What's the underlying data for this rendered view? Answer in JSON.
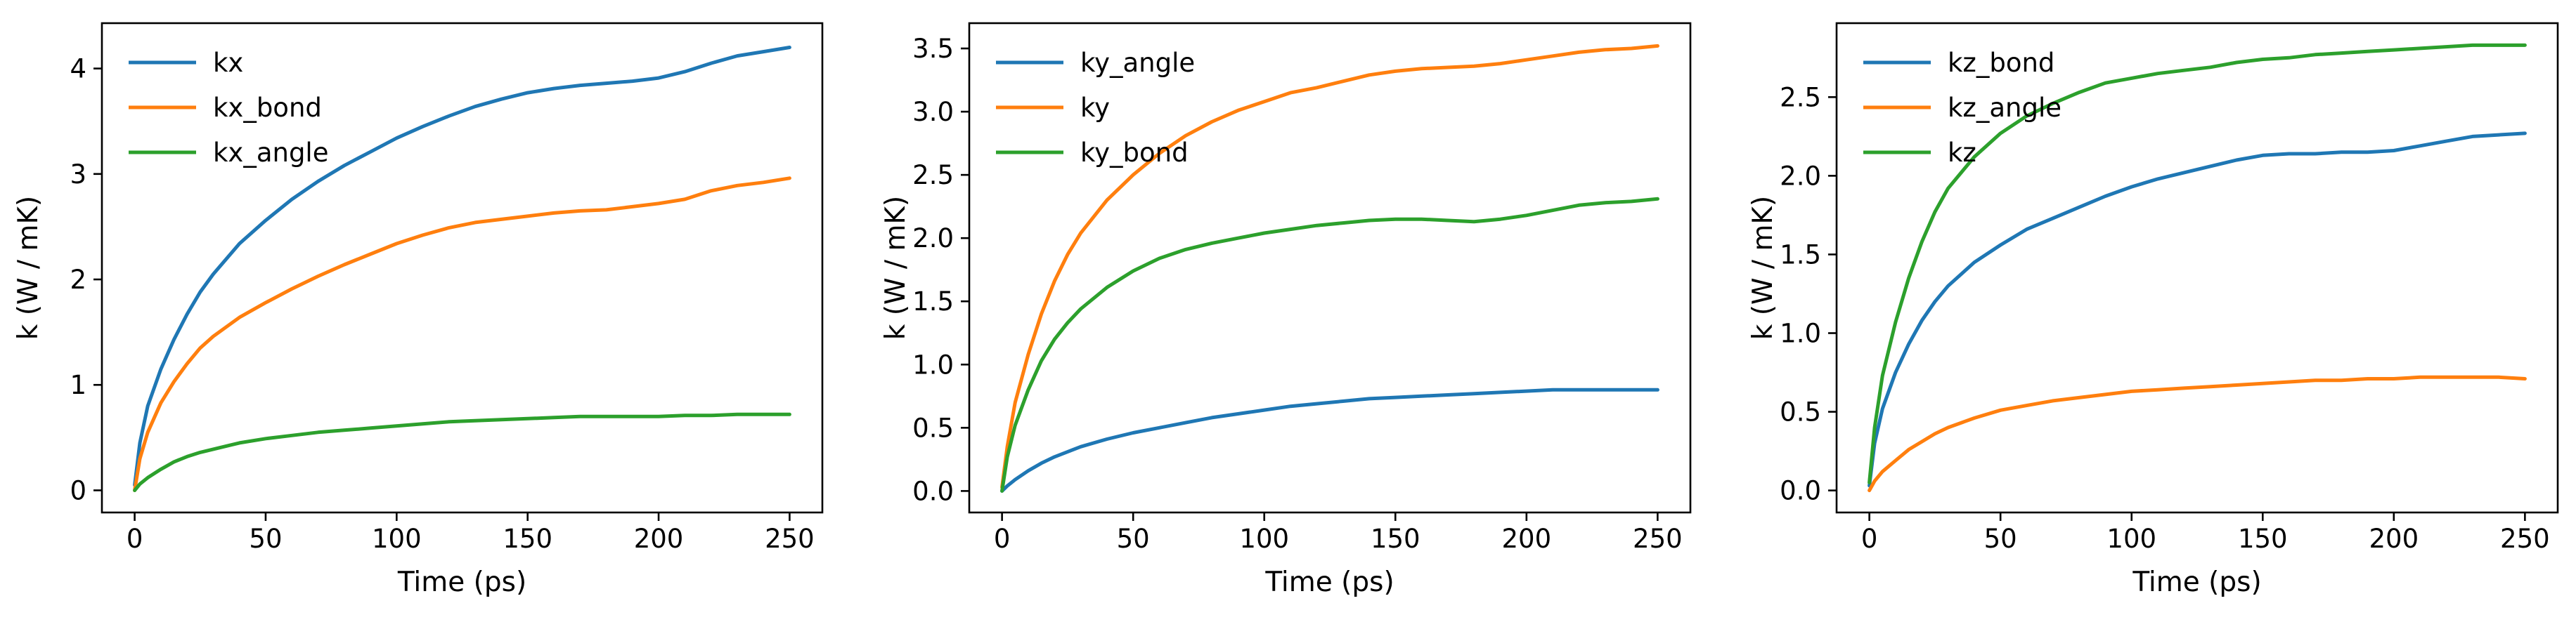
{
  "colors": {
    "blue": "#1f77b4",
    "orange": "#ff7f0e",
    "green": "#2ca02c"
  },
  "chart_data": [
    {
      "type": "line",
      "title": "",
      "xlabel": "Time (ps)",
      "ylabel": "k (W / mK)",
      "xlim": [
        -12.5,
        262.5
      ],
      "ylim": [
        -0.21,
        4.43
      ],
      "xticks": [
        0,
        50,
        100,
        150,
        200,
        250
      ],
      "xtick_labels": [
        "0",
        "50",
        "100",
        "150",
        "200",
        "250"
      ],
      "yticks": [
        0,
        1,
        2,
        3,
        4
      ],
      "ytick_labels": [
        "0",
        "1",
        "2",
        "3",
        "4"
      ],
      "grid": false,
      "legend_position": "top-left",
      "x": [
        0,
        2,
        5,
        10,
        15,
        20,
        25,
        30,
        40,
        50,
        60,
        70,
        80,
        90,
        100,
        110,
        120,
        130,
        140,
        150,
        160,
        170,
        180,
        190,
        200,
        210,
        220,
        230,
        240,
        250
      ],
      "series": [
        {
          "name": "kx",
          "color": "#1f77b4",
          "values": [
            0.05,
            0.45,
            0.8,
            1.15,
            1.43,
            1.67,
            1.88,
            2.05,
            2.34,
            2.56,
            2.76,
            2.93,
            3.08,
            3.21,
            3.34,
            3.45,
            3.55,
            3.64,
            3.71,
            3.77,
            3.81,
            3.84,
            3.86,
            3.88,
            3.91,
            3.97,
            4.05,
            4.12,
            4.16,
            4.2
          ]
        },
        {
          "name": "kx_bond",
          "color": "#ff7f0e",
          "values": [
            0.0,
            0.3,
            0.55,
            0.83,
            1.03,
            1.2,
            1.35,
            1.46,
            1.64,
            1.78,
            1.91,
            2.03,
            2.14,
            2.24,
            2.34,
            2.42,
            2.49,
            2.54,
            2.57,
            2.6,
            2.63,
            2.65,
            2.66,
            2.69,
            2.72,
            2.76,
            2.84,
            2.89,
            2.92,
            2.96
          ]
        },
        {
          "name": "kx_angle",
          "color": "#2ca02c",
          "values": [
            0.0,
            0.06,
            0.12,
            0.2,
            0.27,
            0.32,
            0.36,
            0.39,
            0.45,
            0.49,
            0.52,
            0.55,
            0.57,
            0.59,
            0.61,
            0.63,
            0.65,
            0.66,
            0.67,
            0.68,
            0.69,
            0.7,
            0.7,
            0.7,
            0.7,
            0.71,
            0.71,
            0.72,
            0.72,
            0.72
          ]
        }
      ]
    },
    {
      "type": "line",
      "title": "",
      "xlabel": "Time (ps)",
      "ylabel": "k (W / mK)",
      "xlim": [
        -12.5,
        262.5
      ],
      "ylim": [
        -0.17,
        3.7
      ],
      "xticks": [
        0,
        50,
        100,
        150,
        200,
        250
      ],
      "xtick_labels": [
        "0",
        "50",
        "100",
        "150",
        "200",
        "250"
      ],
      "yticks": [
        0,
        0.5,
        1.0,
        1.5,
        2.0,
        2.5,
        3.0,
        3.5
      ],
      "ytick_labels": [
        "0.0",
        "0.5",
        "1.0",
        "1.5",
        "2.0",
        "2.5",
        "3.0",
        "3.5"
      ],
      "grid": false,
      "legend_position": "top-left",
      "x": [
        0,
        2,
        5,
        10,
        15,
        20,
        25,
        30,
        40,
        50,
        60,
        70,
        80,
        90,
        100,
        110,
        120,
        130,
        140,
        150,
        160,
        170,
        180,
        190,
        200,
        210,
        220,
        230,
        240,
        250
      ],
      "series": [
        {
          "name": "ky_angle",
          "color": "#1f77b4",
          "values": [
            0.0,
            0.04,
            0.09,
            0.16,
            0.22,
            0.27,
            0.31,
            0.35,
            0.41,
            0.46,
            0.5,
            0.54,
            0.58,
            0.61,
            0.64,
            0.67,
            0.69,
            0.71,
            0.73,
            0.74,
            0.75,
            0.76,
            0.77,
            0.78,
            0.79,
            0.8,
            0.8,
            0.8,
            0.8,
            0.8
          ]
        },
        {
          "name": "ky",
          "color": "#ff7f0e",
          "values": [
            0.03,
            0.35,
            0.7,
            1.08,
            1.4,
            1.66,
            1.87,
            2.04,
            2.3,
            2.5,
            2.67,
            2.81,
            2.92,
            3.01,
            3.08,
            3.15,
            3.19,
            3.24,
            3.29,
            3.32,
            3.34,
            3.35,
            3.36,
            3.38,
            3.41,
            3.44,
            3.47,
            3.49,
            3.5,
            3.52
          ]
        },
        {
          "name": "ky_bond",
          "color": "#2ca02c",
          "values": [
            0.0,
            0.27,
            0.52,
            0.8,
            1.03,
            1.2,
            1.33,
            1.44,
            1.61,
            1.74,
            1.84,
            1.91,
            1.96,
            2.0,
            2.04,
            2.07,
            2.1,
            2.12,
            2.14,
            2.15,
            2.15,
            2.14,
            2.13,
            2.15,
            2.18,
            2.22,
            2.26,
            2.28,
            2.29,
            2.31
          ]
        }
      ]
    },
    {
      "type": "line",
      "title": "",
      "xlabel": "Time (ps)",
      "ylabel": "k (W / mK)",
      "xlim": [
        -12.5,
        262.5
      ],
      "ylim": [
        -0.14,
        2.97
      ],
      "xticks": [
        0,
        50,
        100,
        150,
        200,
        250
      ],
      "xtick_labels": [
        "0",
        "50",
        "100",
        "150",
        "200",
        "250"
      ],
      "yticks": [
        0,
        0.5,
        1.0,
        1.5,
        2.0,
        2.5
      ],
      "ytick_labels": [
        "0.0",
        "0.5",
        "1.0",
        "1.5",
        "2.0",
        "2.5"
      ],
      "grid": false,
      "legend_position": "top-left",
      "x": [
        0,
        2,
        5,
        10,
        15,
        20,
        25,
        30,
        40,
        50,
        60,
        70,
        80,
        90,
        100,
        110,
        120,
        130,
        140,
        150,
        160,
        170,
        180,
        190,
        200,
        210,
        220,
        230,
        240,
        250
      ],
      "series": [
        {
          "name": "kz_bond",
          "color": "#1f77b4",
          "values": [
            0.03,
            0.3,
            0.52,
            0.75,
            0.93,
            1.08,
            1.2,
            1.3,
            1.45,
            1.56,
            1.66,
            1.73,
            1.8,
            1.87,
            1.93,
            1.98,
            2.02,
            2.06,
            2.1,
            2.13,
            2.14,
            2.14,
            2.15,
            2.15,
            2.16,
            2.19,
            2.22,
            2.25,
            2.26,
            2.27
          ]
        },
        {
          "name": "kz_angle",
          "color": "#ff7f0e",
          "values": [
            0.0,
            0.06,
            0.12,
            0.19,
            0.26,
            0.31,
            0.36,
            0.4,
            0.46,
            0.51,
            0.54,
            0.57,
            0.59,
            0.61,
            0.63,
            0.64,
            0.65,
            0.66,
            0.67,
            0.68,
            0.69,
            0.7,
            0.7,
            0.71,
            0.71,
            0.72,
            0.72,
            0.72,
            0.72,
            0.71
          ]
        },
        {
          "name": "kz",
          "color": "#2ca02c",
          "values": [
            0.05,
            0.4,
            0.73,
            1.07,
            1.35,
            1.58,
            1.77,
            1.92,
            2.12,
            2.27,
            2.38,
            2.46,
            2.53,
            2.59,
            2.62,
            2.65,
            2.67,
            2.69,
            2.72,
            2.74,
            2.75,
            2.77,
            2.78,
            2.79,
            2.8,
            2.81,
            2.82,
            2.83,
            2.83,
            2.83
          ]
        }
      ]
    }
  ]
}
